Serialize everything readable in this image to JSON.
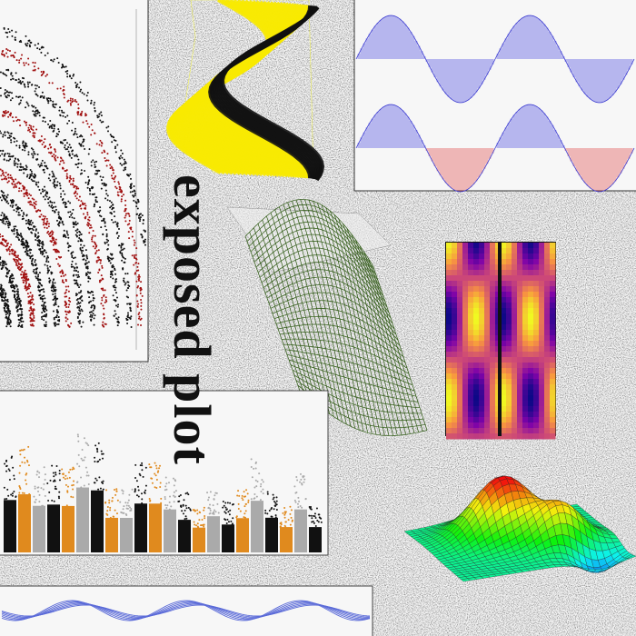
{
  "title": "exposed plot"
}
